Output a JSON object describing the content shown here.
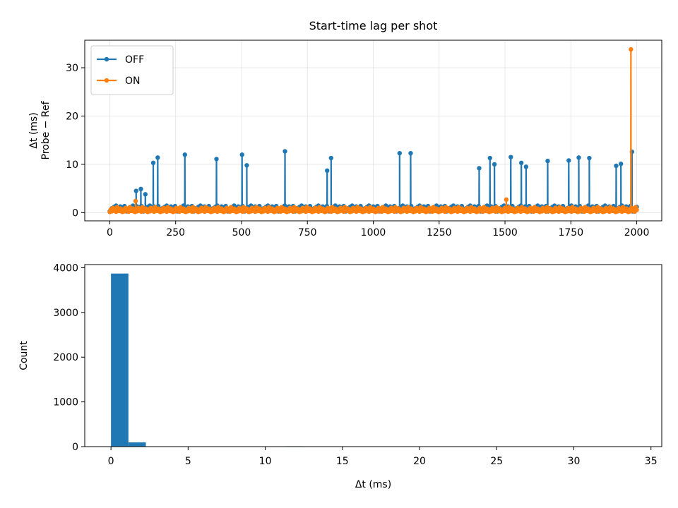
{
  "chart_data": [
    {
      "type": "line",
      "title": "Start-time lag per shot",
      "xlabel": "",
      "ylabel": "Δt (ms)\nProbe − Ref",
      "xlim": [
        -95,
        2095
      ],
      "ylim": [
        -1.7,
        35.7
      ],
      "xticks": [
        0,
        250,
        500,
        750,
        1000,
        1250,
        1500,
        1750,
        2000
      ],
      "yticks": [
        0,
        10,
        20,
        30
      ],
      "grid": true,
      "legend": "upper left",
      "series": [
        {
          "name": "OFF",
          "color": "#1f77b4",
          "baseline": [
            0.3,
            0.6,
            1.0,
            0.8,
            1.3,
            0.5,
            1.6,
            0.9,
            1.1,
            0.7,
            1.4,
            0.6,
            1.2,
            0.8,
            1.5,
            0.9
          ],
          "spikes": [
            {
              "x": 100,
              "y": 4.5
            },
            {
              "x": 118,
              "y": 4.9
            },
            {
              "x": 135,
              "y": 3.8
            },
            {
              "x": 165,
              "y": 10.3
            },
            {
              "x": 182,
              "y": 11.4
            },
            {
              "x": 285,
              "y": 12.0
            },
            {
              "x": 405,
              "y": 11.1
            },
            {
              "x": 502,
              "y": 12.0
            },
            {
              "x": 520,
              "y": 9.8
            },
            {
              "x": 665,
              "y": 12.7
            },
            {
              "x": 825,
              "y": 8.7
            },
            {
              "x": 840,
              "y": 11.3
            },
            {
              "x": 1100,
              "y": 12.3
            },
            {
              "x": 1142,
              "y": 12.3
            },
            {
              "x": 1402,
              "y": 9.2
            },
            {
              "x": 1443,
              "y": 11.3
            },
            {
              "x": 1460,
              "y": 10.0
            },
            {
              "x": 1522,
              "y": 11.5
            },
            {
              "x": 1562,
              "y": 10.3
            },
            {
              "x": 1580,
              "y": 9.5
            },
            {
              "x": 1662,
              "y": 10.7
            },
            {
              "x": 1742,
              "y": 10.8
            },
            {
              "x": 1780,
              "y": 11.4
            },
            {
              "x": 1820,
              "y": 11.3
            },
            {
              "x": 1922,
              "y": 9.7
            },
            {
              "x": 1940,
              "y": 10.1
            },
            {
              "x": 1982,
              "y": 12.6
            }
          ]
        },
        {
          "name": "ON",
          "color": "#ff7f0e",
          "baseline": [
            0.2,
            0.9,
            0.4,
            1.4,
            0.6,
            1.1,
            0.3,
            1.6,
            0.8,
            0.5,
            1.2,
            0.4
          ],
          "spikes": [
            {
              "x": 98,
              "y": 2.4
            },
            {
              "x": 1505,
              "y": 2.7
            },
            {
              "x": 1978,
              "y": 33.8
            }
          ]
        }
      ]
    },
    {
      "type": "bar",
      "title": "",
      "xlabel": "Δt (ms)",
      "ylabel": "Count",
      "xlim": [
        -1.7,
        35.7
      ],
      "ylim": [
        0,
        4070
      ],
      "xticks": [
        0,
        5,
        10,
        15,
        20,
        25,
        30,
        35
      ],
      "yticks": [
        0,
        1000,
        2000,
        3000,
        4000
      ],
      "color": "#1f77b4",
      "bins": [
        {
          "x0": 0.0,
          "x1": 1.13,
          "count": 3870
        },
        {
          "x0": 1.13,
          "x1": 2.26,
          "count": 95
        },
        {
          "x0": 2.26,
          "x1": 3.39,
          "count": 4
        },
        {
          "x0": 3.39,
          "x1": 4.52,
          "count": 3
        },
        {
          "x0": 9.05,
          "x1": 10.18,
          "count": 5
        },
        {
          "x0": 10.18,
          "x1": 11.31,
          "count": 7
        },
        {
          "x0": 11.31,
          "x1": 12.44,
          "count": 9
        },
        {
          "x0": 12.44,
          "x1": 13.57,
          "count": 3
        },
        {
          "x0": 33.41,
          "x1": 34.54,
          "count": 1
        }
      ]
    }
  ]
}
